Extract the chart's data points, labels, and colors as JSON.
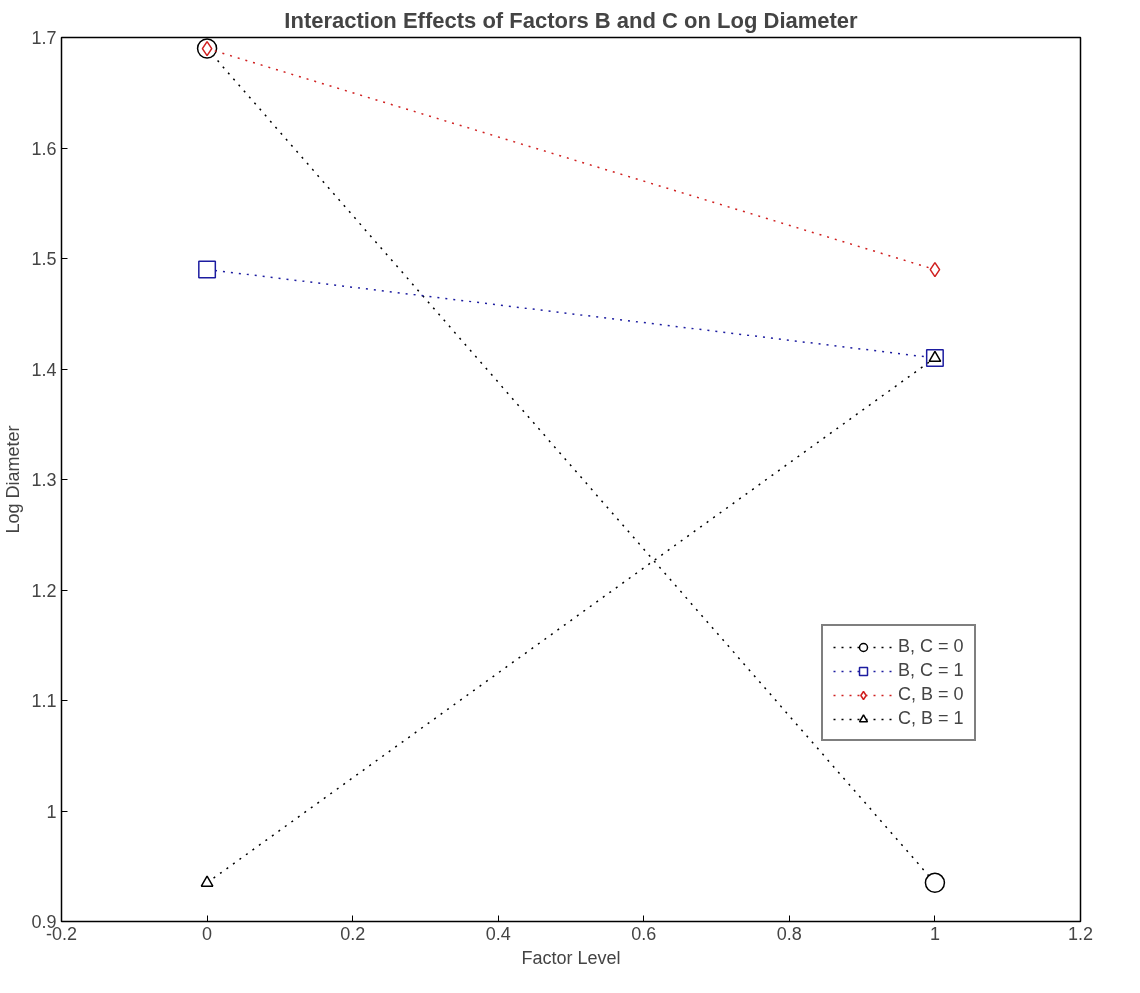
{
  "chart_data": {
    "type": "line",
    "title": "Interaction Effects of Factors B and C on Log Diameter",
    "xlabel": "Factor Level",
    "ylabel": "Log Diameter",
    "x": [
      0,
      1
    ],
    "series": [
      {
        "name": "B, C = 0",
        "color": "#000000",
        "marker": "circle",
        "values": [
          1.69,
          0.935
        ]
      },
      {
        "name": "B, C = 1",
        "color": "#1c1ca0",
        "marker": "square",
        "values": [
          1.49,
          1.41
        ]
      },
      {
        "name": "C, B = 0",
        "color": "#d02020",
        "marker": "diamond",
        "values": [
          1.69,
          1.49
        ]
      },
      {
        "name": "C, B = 1",
        "color": "#000000",
        "marker": "triangle",
        "values": [
          0.935,
          1.41
        ]
      }
    ],
    "xlim": [
      -0.2,
      1.2
    ],
    "xticks": [
      -0.2,
      0,
      0.2,
      0.4,
      0.6,
      0.8,
      1,
      1.2
    ],
    "ylim": [
      0.9,
      1.7
    ],
    "yticks": [
      0.9,
      1,
      1.1,
      1.2,
      1.3,
      1.4,
      1.5,
      1.6,
      1.7
    ],
    "line_style": "dotted",
    "grid": false,
    "legend": "right"
  }
}
